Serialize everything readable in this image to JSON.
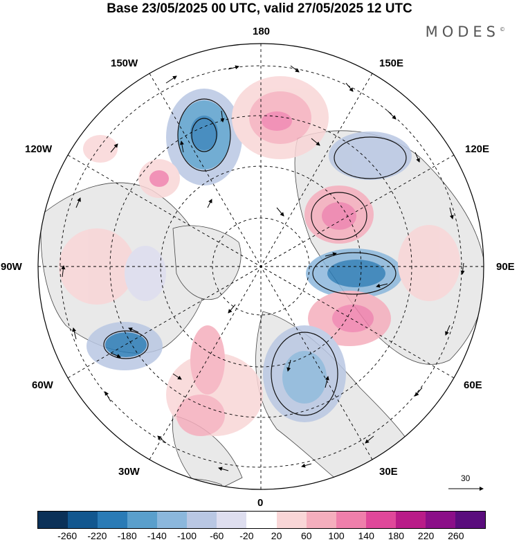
{
  "title": "Base 23/05/2025 00 UTC, valid 27/05/2025 12 UTC",
  "logo": "MODES",
  "logo_mark": "©",
  "longitude_labels": {
    "lon_180": "180",
    "lon_150e": "150E",
    "lon_120e": "120E",
    "lon_90e": "90E",
    "lon_60e": "60E",
    "lon_30e": "30E",
    "lon_0": "0",
    "lon_30w": "30W",
    "lon_60w": "60W",
    "lon_90w": "90W",
    "lon_120w": "120W",
    "lon_150w": "150W"
  },
  "vector_reference": "30",
  "colorbar": {
    "colors": [
      "#0b3158",
      "#12578f",
      "#2a7bb6",
      "#5a9fcc",
      "#8bb7dc",
      "#b9c7e3",
      "#dedeef",
      "#ffffff",
      "#f9d6d7",
      "#f5aebd",
      "#ef7fab",
      "#e0489a",
      "#b91c88",
      "#8b0f88",
      "#5a0d7d"
    ],
    "ticks": [
      "-260",
      "-220",
      "-180",
      "-140",
      "-100",
      "-60",
      "-20",
      "20",
      "60",
      "100",
      "140",
      "180",
      "220",
      "260"
    ]
  }
}
